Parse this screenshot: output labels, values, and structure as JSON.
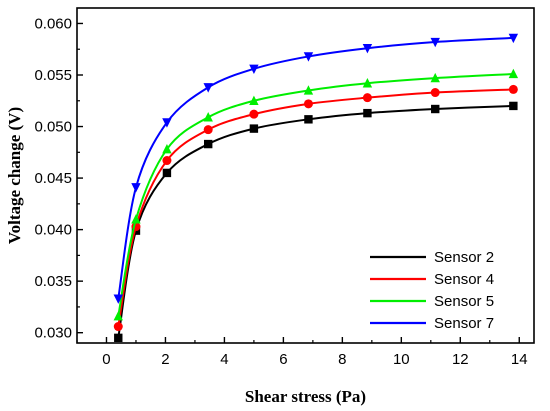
{
  "chart_data": {
    "type": "line",
    "xlabel": "Shear stress (Pa)",
    "ylabel": "Voltage change (V)",
    "xlim": [
      -1,
      14.5
    ],
    "ylim": [
      0.029,
      0.0615
    ],
    "xticks": [
      "0",
      "2",
      "4",
      "6",
      "8",
      "10",
      "12",
      "14"
    ],
    "yticks": [
      "0.030",
      "0.035",
      "0.040",
      "0.045",
      "0.050",
      "0.055",
      "0.060"
    ],
    "xtick_values": [
      0,
      2,
      4,
      6,
      8,
      10,
      12,
      14
    ],
    "ytick_values": [
      0.03,
      0.035,
      0.04,
      0.045,
      0.05,
      0.055,
      0.06
    ],
    "grid": false,
    "legend_position": "bottom-right",
    "x": [
      0.4,
      1.0,
      2.05,
      3.45,
      5.0,
      6.85,
      8.85,
      11.15,
      13.8
    ],
    "series": [
      {
        "name": "Sensor 2",
        "color": "#000000",
        "marker": "square",
        "values": [
          0.0295,
          0.0399,
          0.0455,
          0.0483,
          0.0498,
          0.0507,
          0.0513,
          0.0517,
          0.052
        ]
      },
      {
        "name": "Sensor 4",
        "color": "#ff0000",
        "marker": "circle",
        "values": [
          0.0306,
          0.0403,
          0.0467,
          0.0497,
          0.0512,
          0.0522,
          0.0528,
          0.0533,
          0.0536
        ]
      },
      {
        "name": "Sensor 5",
        "color": "#00ee00",
        "marker": "triangle-up",
        "values": [
          0.0316,
          0.041,
          0.0478,
          0.0509,
          0.0525,
          0.0535,
          0.0542,
          0.0547,
          0.0551
        ]
      },
      {
        "name": "Sensor 7",
        "color": "#0000ff",
        "marker": "triangle-down",
        "values": [
          0.0333,
          0.0441,
          0.0504,
          0.0538,
          0.0556,
          0.0568,
          0.0576,
          0.0582,
          0.0586
        ]
      }
    ]
  }
}
